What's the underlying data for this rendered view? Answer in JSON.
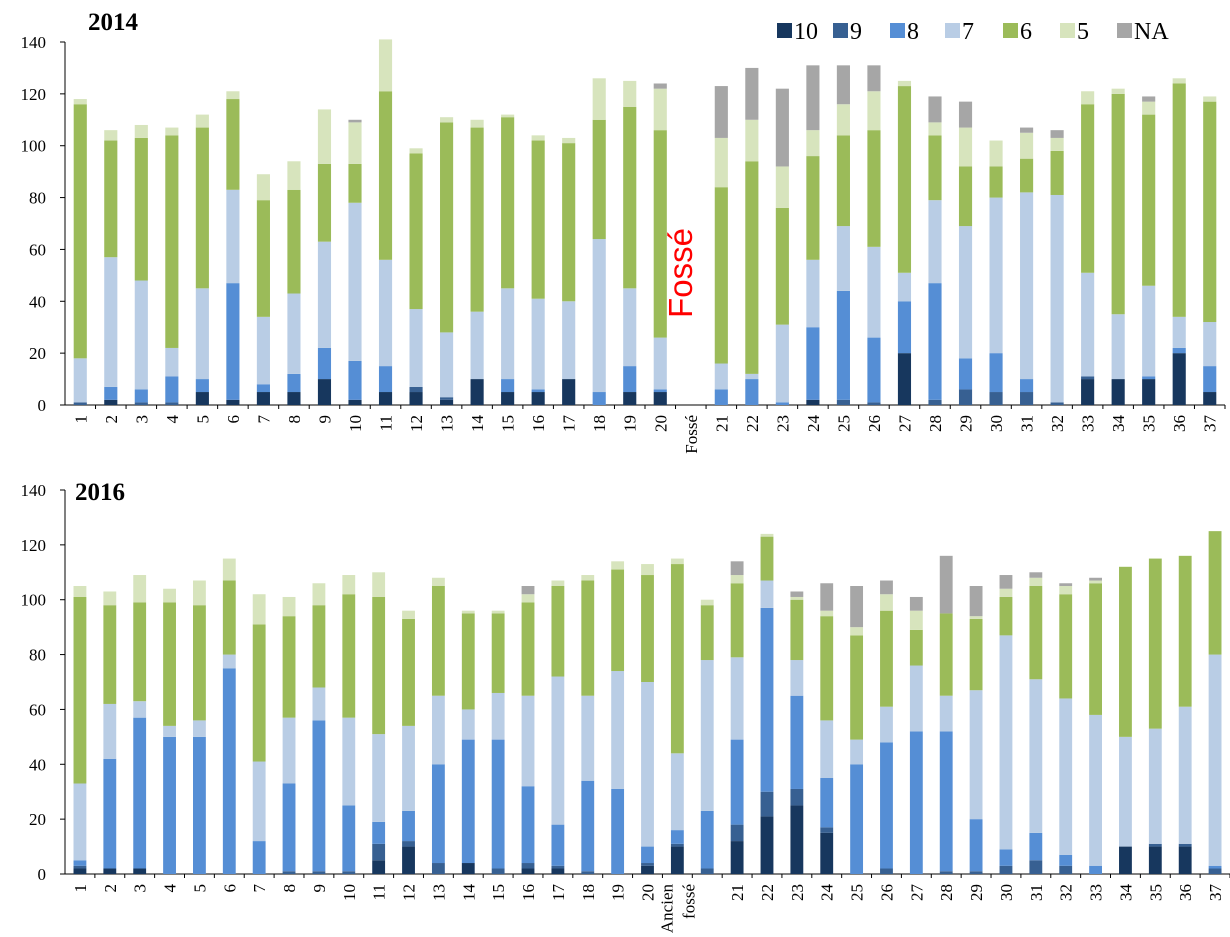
{
  "legend": [
    {
      "label": "10",
      "color": "#17375e"
    },
    {
      "label": "9",
      "color": "#376092"
    },
    {
      "label": "8",
      "color": "#558ed5"
    },
    {
      "label": "7",
      "color": "#b9cde5"
    },
    {
      "label": "6",
      "color": "#9bbb59"
    },
    {
      "label": "5",
      "color": "#d7e4bd"
    },
    {
      "label": "NA",
      "color": "#a6a6a6"
    }
  ],
  "annotation": {
    "text": "Fossé",
    "color": "#ff0000"
  },
  "chart_data": [
    {
      "type": "bar",
      "stacked": true,
      "title": "2014",
      "ylim": [
        0,
        140
      ],
      "yticks": [
        0,
        20,
        40,
        60,
        80,
        100,
        120,
        140
      ],
      "categories": [
        "1",
        "2",
        "3",
        "4",
        "5",
        "6",
        "7",
        "8",
        "9",
        "10",
        "11",
        "12",
        "13",
        "14",
        "15",
        "16",
        "17",
        "18",
        "19",
        "20",
        "Fossé",
        "21",
        "22",
        "23",
        "24",
        "25",
        "26",
        "27",
        "28",
        "29",
        "30",
        "31",
        "32",
        "33",
        "34",
        "35",
        "36",
        "37"
      ],
      "series": [
        {
          "name": "10",
          "values": [
            0,
            2,
            0,
            0,
            5,
            2,
            5,
            5,
            10,
            2,
            5,
            5,
            2,
            10,
            5,
            5,
            10,
            0,
            5,
            5,
            0,
            0,
            0,
            0,
            2,
            0,
            0,
            20,
            0,
            0,
            0,
            0,
            0,
            10,
            10,
            10,
            20,
            5
          ]
        },
        {
          "name": "9",
          "values": [
            1,
            0,
            1,
            1,
            0,
            0,
            0,
            0,
            0,
            0,
            0,
            2,
            1,
            0,
            0,
            0,
            0,
            0,
            0,
            0,
            0,
            0,
            0,
            0,
            0,
            2,
            1,
            0,
            2,
            6,
            5,
            5,
            1,
            1,
            0,
            0,
            0,
            0
          ]
        },
        {
          "name": "8",
          "values": [
            0,
            5,
            5,
            10,
            5,
            45,
            3,
            7,
            12,
            15,
            10,
            0,
            0,
            0,
            5,
            1,
            0,
            5,
            10,
            1,
            0,
            6,
            10,
            1,
            28,
            42,
            25,
            20,
            45,
            12,
            15,
            5,
            0,
            0,
            0,
            1,
            2,
            10
          ]
        },
        {
          "name": "7",
          "values": [
            17,
            50,
            42,
            11,
            35,
            36,
            26,
            31,
            41,
            61,
            41,
            30,
            25,
            26,
            35,
            35,
            30,
            59,
            30,
            20,
            0,
            10,
            2,
            30,
            26,
            25,
            35,
            11,
            32,
            51,
            60,
            72,
            80,
            40,
            25,
            35,
            12,
            17
          ]
        },
        {
          "name": "6",
          "values": [
            98,
            45,
            55,
            82,
            62,
            35,
            45,
            40,
            30,
            15,
            65,
            60,
            81,
            71,
            66,
            61,
            61,
            46,
            70,
            80,
            0,
            68,
            82,
            45,
            40,
            35,
            45,
            72,
            25,
            23,
            12,
            13,
            17,
            65,
            85,
            66,
            90,
            85
          ]
        },
        {
          "name": "5",
          "values": [
            2,
            4,
            5,
            3,
            5,
            3,
            10,
            11,
            21,
            16,
            20,
            2,
            2,
            3,
            1,
            2,
            2,
            16,
            10,
            16,
            0,
            19,
            16,
            16,
            10,
            12,
            15,
            2,
            5,
            15,
            10,
            10,
            5,
            5,
            2,
            5,
            2,
            2
          ]
        },
        {
          "name": "NA",
          "values": [
            0,
            0,
            0,
            0,
            0,
            0,
            0,
            0,
            0,
            1,
            0,
            0,
            0,
            0,
            0,
            0,
            0,
            0,
            0,
            2,
            0,
            20,
            20,
            30,
            25,
            15,
            10,
            0,
            10,
            10,
            0,
            2,
            3,
            0,
            0,
            2,
            0,
            0
          ]
        }
      ]
    },
    {
      "type": "bar",
      "stacked": true,
      "title": "2016",
      "ylim": [
        0,
        140
      ],
      "yticks": [
        0,
        20,
        40,
        60,
        80,
        100,
        120,
        140
      ],
      "categories": [
        "1",
        "2",
        "3",
        "4",
        "5",
        "6",
        "7",
        "8",
        "9",
        "10",
        "11",
        "12",
        "13",
        "14",
        "15",
        "16",
        "17",
        "18",
        "19",
        "20",
        "Ancien fossé",
        "",
        "21",
        "22",
        "23",
        "24",
        "25",
        "26",
        "27",
        "28",
        "29",
        "30",
        "31",
        "32",
        "33",
        "34",
        "35",
        "36",
        "37"
      ],
      "series": [
        {
          "name": "10",
          "values": [
            2,
            2,
            2,
            0,
            0,
            0,
            0,
            0,
            0,
            0,
            5,
            10,
            0,
            4,
            0,
            2,
            2,
            0,
            0,
            3,
            10,
            0,
            12,
            21,
            25,
            15,
            0,
            0,
            0,
            0,
            0,
            0,
            0,
            0,
            0,
            10,
            10,
            10,
            0
          ]
        },
        {
          "name": "9",
          "values": [
            1,
            0,
            0,
            0,
            0,
            0,
            0,
            1,
            1,
            1,
            6,
            2,
            4,
            0,
            2,
            2,
            1,
            1,
            0,
            1,
            1,
            2,
            6,
            9,
            6,
            2,
            0,
            2,
            0,
            1,
            1,
            3,
            5,
            3,
            0,
            0,
            1,
            1,
            2
          ]
        },
        {
          "name": "8",
          "values": [
            2,
            40,
            55,
            50,
            50,
            75,
            12,
            32,
            55,
            24,
            8,
            11,
            36,
            45,
            47,
            28,
            15,
            33,
            31,
            6,
            5,
            21,
            31,
            67,
            34,
            18,
            40,
            46,
            52,
            51,
            19,
            6,
            10,
            4,
            3,
            0,
            0,
            0,
            1
          ]
        },
        {
          "name": "7",
          "values": [
            28,
            20,
            6,
            4,
            6,
            5,
            29,
            24,
            12,
            32,
            32,
            31,
            25,
            11,
            17,
            33,
            54,
            31,
            43,
            60,
            28,
            55,
            30,
            10,
            13,
            21,
            9,
            13,
            24,
            13,
            47,
            78,
            56,
            57,
            55,
            40,
            42,
            50,
            77
          ]
        },
        {
          "name": "6",
          "values": [
            68,
            36,
            36,
            45,
            42,
            27,
            50,
            37,
            30,
            45,
            50,
            39,
            40,
            35,
            29,
            34,
            33,
            42,
            37,
            39,
            69,
            20,
            27,
            16,
            22,
            38,
            38,
            35,
            13,
            30,
            26,
            14,
            34,
            38,
            48,
            62,
            62,
            55,
            45
          ]
        },
        {
          "name": "5",
          "values": [
            4,
            5,
            10,
            5,
            9,
            8,
            11,
            7,
            8,
            7,
            9,
            3,
            3,
            1,
            1,
            3,
            2,
            2,
            3,
            4,
            2,
            2,
            3,
            1,
            1,
            2,
            3,
            6,
            7,
            0,
            1,
            3,
            3,
            3,
            1,
            0,
            0,
            0,
            0
          ]
        },
        {
          "name": "NA",
          "values": [
            0,
            0,
            0,
            0,
            0,
            0,
            0,
            0,
            0,
            0,
            0,
            0,
            0,
            0,
            0,
            3,
            0,
            0,
            0,
            0,
            0,
            0,
            5,
            0,
            2,
            10,
            15,
            5,
            5,
            21,
            11,
            5,
            2,
            1,
            1,
            0,
            0,
            0,
            0
          ]
        }
      ]
    }
  ]
}
